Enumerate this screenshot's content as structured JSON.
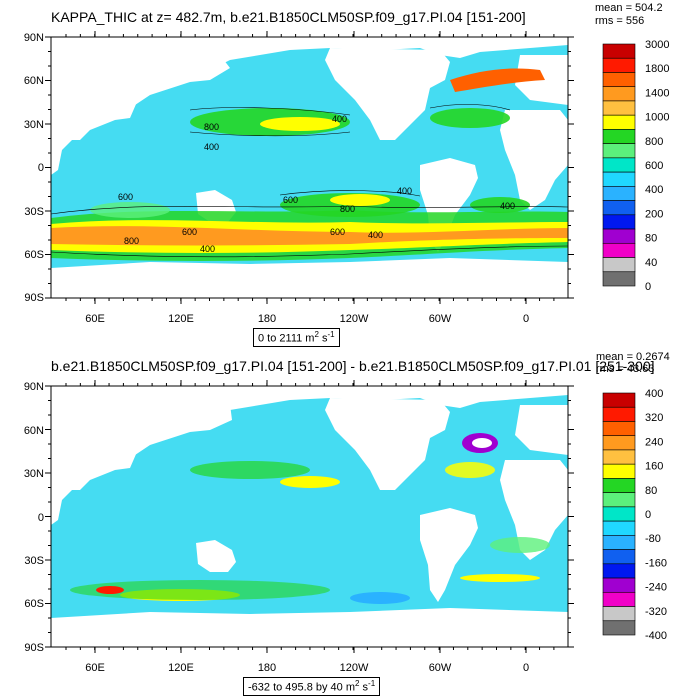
{
  "chart_data": [
    {
      "type": "heatmap",
      "title": "KAPPA_THIC at z= 482.7m, b.e21.B1850CLM50SP.f09_g17.PI.04 [151-200]",
      "stats": {
        "mean": "mean = 504.2",
        "rms": "rms = 556"
      },
      "range_label": "0 to 2111 m",
      "range_sup": "2",
      "range_tail": " s",
      "range_sup2": "-1",
      "y_ticks": [
        "90N",
        "60N",
        "30N",
        "0",
        "30S",
        "60S",
        "90S"
      ],
      "x_ticks": [
        "60E",
        "120E",
        "180",
        "120W",
        "60W",
        "0"
      ],
      "colorbar_labels": [
        "3000",
        "1800",
        "1400",
        "1000",
        "800",
        "600",
        "400",
        "200",
        "80",
        "40",
        "0"
      ],
      "colorbar_colors": [
        "#c80000",
        "#ff1a00",
        "#ff6000",
        "#ff9a1f",
        "#ffc040",
        "#ffff00",
        "#24d624",
        "#5cf07c",
        "#00e6c8",
        "#20d8ff",
        "#2ab2ff",
        "#1060f0",
        "#0018f0",
        "#a000d0",
        "#f000c8",
        "#c8c8c8",
        "#707070"
      ],
      "contour_labels": [
        "800",
        "400",
        "600",
        "400",
        "600",
        "400",
        "800",
        "600",
        "400",
        "400",
        "600",
        "800",
        "400"
      ]
    },
    {
      "type": "heatmap",
      "title": "b.e21.B1850CLM50SP.f09_g17.PI.04 [151-200] - b.e21.B1850CLM50SP.f09_g17.PI.01 [251-300]",
      "stats": {
        "mean": "mean = 0.2674",
        "rms": "rms = 43.63"
      },
      "range_label": "-632 to 495.8 by 40 m",
      "range_sup": "2",
      "range_tail": " s",
      "range_sup2": "-1",
      "y_ticks": [
        "90N",
        "60N",
        "30N",
        "0",
        "30S",
        "60S",
        "90S"
      ],
      "x_ticks": [
        "60E",
        "120E",
        "180",
        "120W",
        "60W",
        "0"
      ],
      "colorbar_labels": [
        "400",
        "320",
        "240",
        "160",
        "80",
        "0",
        "-80",
        "-160",
        "-240",
        "-320",
        "-400"
      ],
      "colorbar_colors": [
        "#c80000",
        "#ff1a00",
        "#ff6000",
        "#ff9a1f",
        "#ffc040",
        "#ffff00",
        "#24d624",
        "#5cf07c",
        "#00e6c8",
        "#20d8ff",
        "#2ab2ff",
        "#1060f0",
        "#0018f0",
        "#a000d0",
        "#f000c8",
        "#c8c8c8",
        "#707070"
      ]
    }
  ],
  "colors": {
    "ocean_base": "#45dcf2",
    "ocean_mid": "#5ce6d7",
    "land": "#ffffff"
  }
}
